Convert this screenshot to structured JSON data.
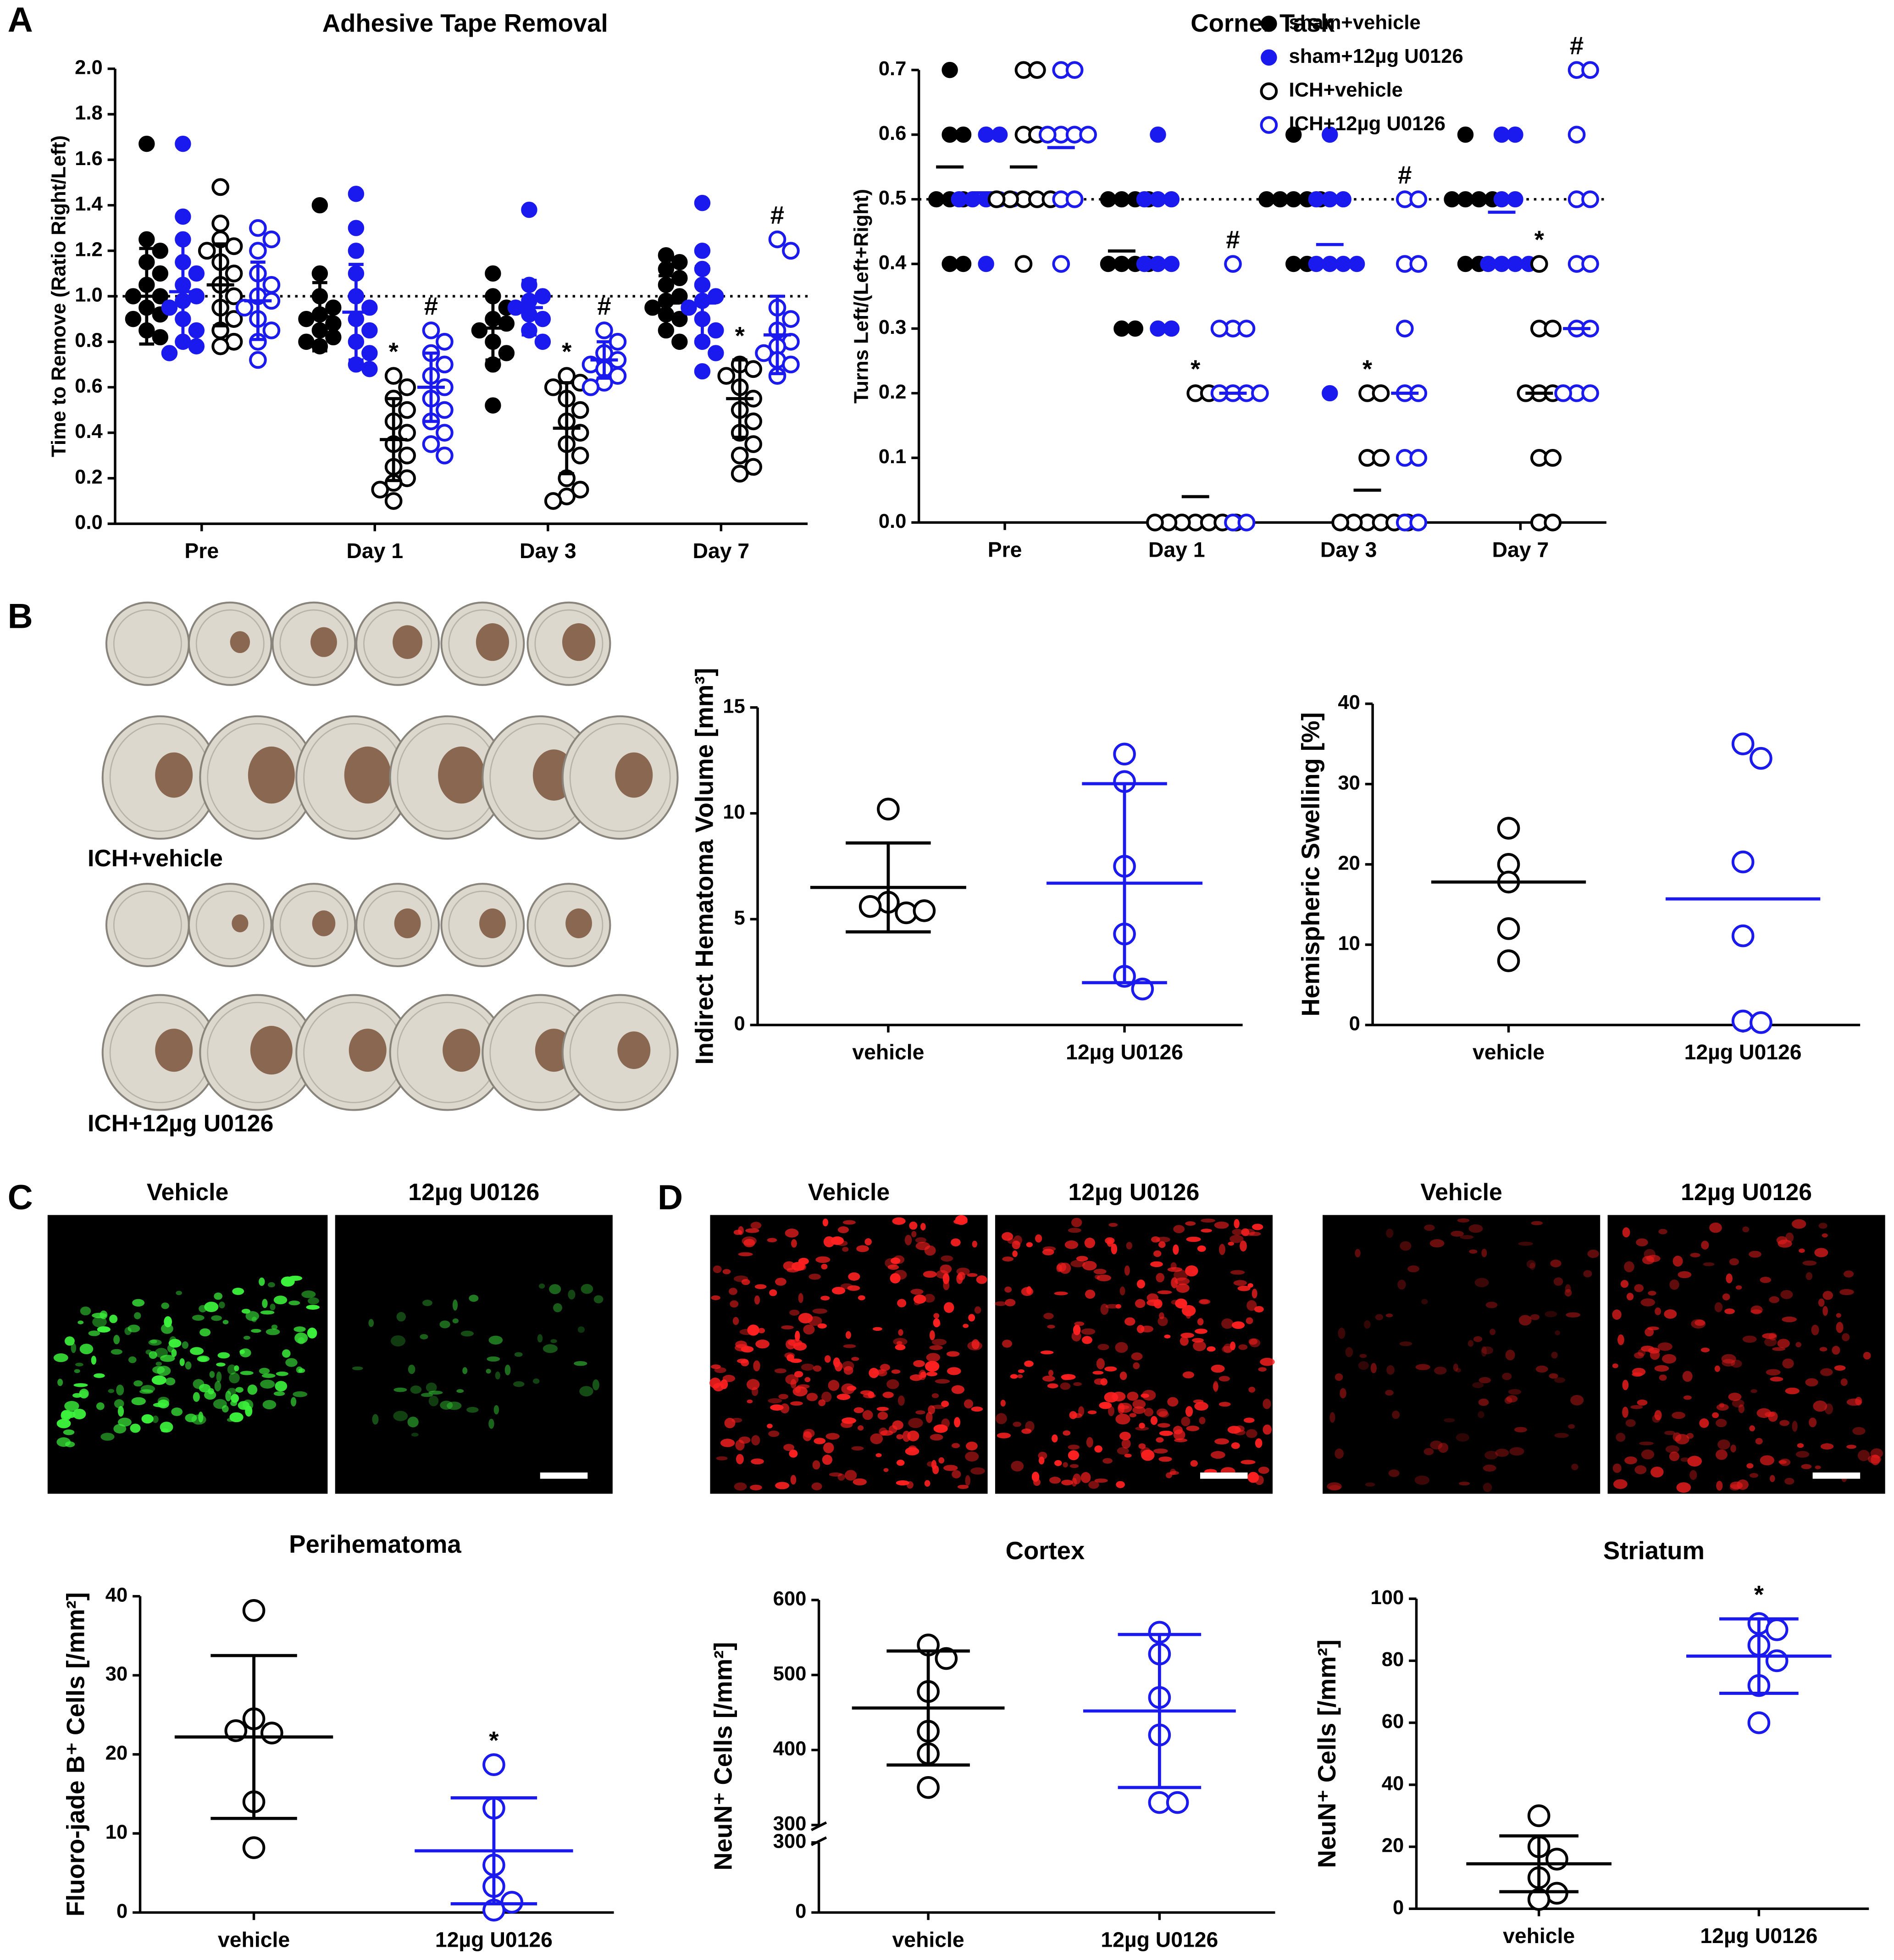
{
  "panel_labels": [
    "A",
    "B",
    "C",
    "D"
  ],
  "image_labels": [
    "ICH+vehicle",
    "ICH+12µg U0126",
    "Vehicle",
    "12µg U0126",
    "Vehicle",
    "12µg U0126",
    "Vehicle",
    "12µg U0126"
  ],
  "chart_data": [
    {
      "type": "dotplot",
      "title": "Adhesive Tape Removal",
      "ylabel": "Time to Remove (Ratio Right/Left)",
      "categories": [
        "Pre",
        "Day 1",
        "Day 3",
        "Day 7"
      ],
      "ylim": [
        0,
        2
      ],
      "yticks": [
        {
          "value": 0,
          "label": "0.0"
        },
        0.2,
        0.4,
        0.6,
        0.8,
        {
          "value": 1,
          "label": "1.0"
        },
        1.2,
        1.4,
        1.6,
        1.8,
        {
          "value": 2,
          "label": "2.0"
        }
      ],
      "refline": 1,
      "series": [
        {
          "color": "#000000",
          "filled": true,
          "values": [
            [
              1.67,
              1.25,
              1.2,
              1.15,
              1.1,
              1.05,
              1.0,
              1.0,
              0.95,
              0.92,
              0.9,
              0.85,
              0.82
            ],
            [
              1.4,
              1.1,
              1.0,
              0.95,
              0.92,
              0.9,
              0.88,
              0.85,
              0.82,
              0.8,
              0.78
            ],
            [
              1.1,
              1.0,
              0.95,
              0.9,
              0.88,
              0.85,
              0.8,
              0.75,
              0.7,
              0.52
            ],
            [
              1.18,
              1.15,
              1.12,
              1.08,
              1.05,
              1.0,
              0.98,
              0.95,
              0.92,
              0.9,
              0.85,
              0.8
            ]
          ],
          "mean": [
            1.0,
            0.91,
            0.86,
            0.97
          ],
          "error": [
            0.21,
            0.15,
            0.14,
            0.12
          ]
        },
        {
          "color": "#1a1aee",
          "filled": true,
          "values": [
            [
              1.67,
              1.35,
              1.25,
              1.15,
              1.1,
              1.05,
              1.0,
              0.98,
              0.95,
              0.9,
              0.85,
              0.8,
              0.78,
              0.75
            ],
            [
              1.45,
              1.3,
              1.2,
              1.1,
              1.0,
              0.95,
              0.9,
              0.85,
              0.8,
              0.75,
              0.7,
              0.68
            ],
            [
              1.38,
              1.05,
              1.0,
              0.98,
              0.95,
              0.92,
              0.9,
              0.85,
              0.8
            ],
            [
              1.41,
              1.2,
              1.12,
              1.05,
              1.0,
              0.98,
              0.95,
              0.9,
              0.85,
              0.8,
              0.75,
              0.67
            ]
          ],
          "mean": [
            1.02,
            0.93,
            0.95,
            0.97
          ],
          "error": [
            0.23,
            0.21,
            0.12,
            0.16
          ]
        },
        {
          "color": "#000000",
          "filled": false,
          "values": [
            [
              1.48,
              1.32,
              1.25,
              1.22,
              1.2,
              1.15,
              1.1,
              1.05,
              1.0,
              0.95,
              0.9,
              0.85,
              0.8,
              0.78
            ],
            [
              0.65,
              0.6,
              0.55,
              0.5,
              0.45,
              0.4,
              0.35,
              0.3,
              0.25,
              0.2,
              0.18,
              0.15,
              0.1
            ],
            [
              0.65,
              0.62,
              0.6,
              0.55,
              0.5,
              0.45,
              0.4,
              0.35,
              0.3,
              0.2,
              0.15,
              0.12,
              0.1
            ],
            [
              0.7,
              0.68,
              0.65,
              0.6,
              0.55,
              0.5,
              0.45,
              0.4,
              0.35,
              0.3,
              0.25,
              0.22
            ]
          ],
          "mean": [
            1.05,
            0.37,
            0.42,
            0.55
          ],
          "error": [
            0.18,
            0.18,
            0.2,
            0.17
          ],
          "annotations": [
            null,
            "*",
            "*",
            "*"
          ]
        },
        {
          "color": "#1a1aee",
          "filled": false,
          "values": [
            [
              1.3,
              1.25,
              1.2,
              1.1,
              1.05,
              1.0,
              0.98,
              0.95,
              0.9,
              0.85,
              0.8,
              0.72
            ],
            [
              0.85,
              0.8,
              0.75,
              0.7,
              0.65,
              0.6,
              0.55,
              0.5,
              0.45,
              0.4,
              0.35,
              0.3
            ],
            [
              0.85,
              0.8,
              0.75,
              0.72,
              0.7,
              0.68,
              0.65,
              0.62,
              0.6
            ],
            [
              1.25,
              1.2,
              0.95,
              0.9,
              0.85,
              0.8,
              0.78,
              0.75,
              0.72,
              0.7,
              0.65
            ]
          ],
          "mean": [
            0.98,
            0.6,
            0.72,
            0.83
          ],
          "error": [
            0.17,
            0.15,
            0.08,
            0.17
          ],
          "annotations": [
            null,
            "#",
            "#",
            "#"
          ]
        }
      ]
    },
    {
      "type": "dotplot",
      "title": "Corner Task",
      "ylabel": "Turns Left/(Left+Right)",
      "categories": [
        "Pre",
        "Day 1",
        "Day 3",
        "Day 7"
      ],
      "ylim": [
        0,
        0.7
      ],
      "yticks": [
        {
          "value": 0,
          "label": "0.0"
        },
        0.1,
        0.2,
        0.3,
        0.4,
        0.5,
        0.6,
        0.7
      ],
      "refline": 0.5,
      "series": [
        {
          "name": "sham+vehicle",
          "color": "#000000",
          "filled": true,
          "values": [
            [
              0.7,
              0.6,
              0.6,
              0.5,
              0.5,
              0.5,
              0.4,
              0.4
            ],
            [
              0.5,
              0.5,
              0.5,
              0.5,
              0.4,
              0.4,
              0.4,
              0.4,
              0.3,
              0.3
            ],
            [
              0.6,
              0.5,
              0.5,
              0.5,
              0.5,
              0.5,
              0.4,
              0.4
            ],
            [
              0.6,
              0.5,
              0.5,
              0.5,
              0.5,
              0.4,
              0.4
            ]
          ],
          "mean": [
            0.55,
            0.42,
            0.5,
            0.5
          ]
        },
        {
          "name": "sham+12µg U0126",
          "color": "#1a1aee",
          "filled": true,
          "values": [
            [
              0.6,
              0.6,
              0.5,
              0.5,
              0.5,
              0.5,
              0.5,
              0.4
            ],
            [
              0.6,
              0.5,
              0.5,
              0.5,
              0.4,
              0.4,
              0.4,
              0.3,
              0.3
            ],
            [
              0.6,
              0.5,
              0.5,
              0.5,
              0.4,
              0.4,
              0.4,
              0.4,
              0.2
            ],
            [
              0.6,
              0.6,
              0.5,
              0.5,
              0.4,
              0.4,
              0.4,
              0.4
            ]
          ],
          "mean": [
            0.51,
            0.4,
            0.43,
            0.48
          ]
        },
        {
          "name": "ICH+vehicle",
          "color": "#000000",
          "filled": false,
          "values": [
            [
              0.7,
              0.7,
              0.6,
              0.6,
              0.5,
              0.5,
              0.5,
              0.5,
              0.5,
              0.4
            ],
            [
              0.2,
              0.2,
              0,
              0,
              0,
              0,
              0,
              0,
              0
            ],
            [
              0.2,
              0.2,
              0.1,
              0.1,
              0,
              0,
              0,
              0,
              0,
              0
            ],
            [
              0.4,
              0.3,
              0.3,
              0.2,
              0.2,
              0.2,
              0.1,
              0.1,
              0,
              0
            ]
          ],
          "mean": [
            0.55,
            0.04,
            0.05,
            0.2
          ],
          "annotations": [
            null,
            "*",
            "*",
            "*"
          ]
        },
        {
          "name": "ICH+12µg U0126",
          "color": "#1a1aee",
          "filled": false,
          "values": [
            [
              0.7,
              0.7,
              0.6,
              0.6,
              0.6,
              0.6,
              0.5,
              0.5,
              0.4
            ],
            [
              0.4,
              0.3,
              0.3,
              0.3,
              0.2,
              0.2,
              0.2,
              0.2,
              0,
              0
            ],
            [
              0.5,
              0.5,
              0.4,
              0.4,
              0.3,
              0.2,
              0.2,
              0.1,
              0.1,
              0,
              0
            ],
            [
              0.7,
              0.7,
              0.6,
              0.5,
              0.5,
              0.4,
              0.4,
              0.3,
              0.3,
              0.2,
              0.2,
              0.2
            ]
          ],
          "mean": [
            0.58,
            0.2,
            0.2,
            0.3
          ],
          "annotations": [
            null,
            "#",
            "#",
            "#"
          ]
        }
      ]
    },
    {
      "type": "dotplot",
      "ylabel": "Indirect Hematoma Volume [mm³]",
      "categories": [
        "vehicle",
        "12µg U0126"
      ],
      "colors": [
        "#000000",
        "#1a1aee"
      ],
      "ylim": [
        0,
        15
      ],
      "yticks": [
        0,
        5,
        10,
        15
      ],
      "values": [
        [
          10.2,
          5.8,
          5.3,
          5.6,
          5.4
        ],
        [
          12.8,
          11.5,
          7.5,
          4.3,
          2.3,
          1.7
        ]
      ],
      "mean": [
        6.5,
        6.7
      ],
      "error": [
        2.1,
        4.7
      ]
    },
    {
      "type": "dotplot",
      "ylabel": "Hemispheric Swelling [%]",
      "categories": [
        "vehicle",
        "12µg U0126"
      ],
      "colors": [
        "#000000",
        "#1a1aee"
      ],
      "ylim": [
        0,
        40
      ],
      "yticks": [
        0,
        10,
        20,
        30,
        40
      ],
      "values": [
        [
          24.5,
          20,
          17.8,
          12,
          8
        ],
        [
          35,
          33.2,
          20.3,
          11.1,
          0.5,
          0.3
        ]
      ],
      "mean": [
        17.8,
        15.7
      ]
    },
    {
      "type": "dotplot",
      "title": "Perihematoma",
      "ylabel": "Fluoro-jade B⁺ Cells [/mm²]",
      "categories": [
        "vehicle",
        "12µg U0126"
      ],
      "colors": [
        "#000000",
        "#1a1aee"
      ],
      "ylim": [
        0,
        40
      ],
      "yticks": [
        0,
        10,
        20,
        30,
        40
      ],
      "values": [
        [
          38.2,
          24.5,
          22.7,
          23,
          14,
          8.2
        ],
        [
          18.7,
          13.2,
          6,
          3.3,
          1.3,
          0.3
        ]
      ],
      "mean": [
        22.2,
        7.8
      ],
      "error": [
        10.3,
        6.7
      ],
      "annotations": [
        null,
        "*"
      ]
    },
    {
      "type": "dotplot",
      "title": "Cortex",
      "ylabel": "NeuN⁺ Cells [/mm²]",
      "categories": [
        "vehicle",
        "12µg U0126"
      ],
      "colors": [
        "#000000",
        "#1a1aee"
      ],
      "ylim": [
        300,
        600
      ],
      "yticks": [
        300,
        400,
        500,
        600
      ],
      "ylim_lower": [
        0,
        300
      ],
      "yticks_lower": [
        0,
        300
      ],
      "values": [
        [
          540,
          522,
          478,
          425,
          395,
          350
        ],
        [
          557,
          528,
          470,
          420,
          330,
          330
        ]
      ],
      "mean": [
        456,
        452
      ],
      "error": [
        76,
        102
      ]
    },
    {
      "type": "dotplot",
      "title": "Striatum",
      "ylabel": "NeuN⁺ Cells [/mm²]",
      "categories": [
        "vehicle",
        "12µg U0126"
      ],
      "colors": [
        "#000000",
        "#1a1aee"
      ],
      "ylim": [
        0,
        100
      ],
      "yticks": [
        0,
        20,
        40,
        60,
        80,
        100
      ],
      "values": [
        [
          30,
          20,
          16,
          10,
          5,
          3
        ],
        [
          92,
          90,
          85,
          80,
          72,
          60
        ]
      ],
      "mean": [
        14.5,
        81.5
      ],
      "error": [
        9,
        12
      ],
      "annotations": [
        null,
        "*"
      ]
    }
  ]
}
